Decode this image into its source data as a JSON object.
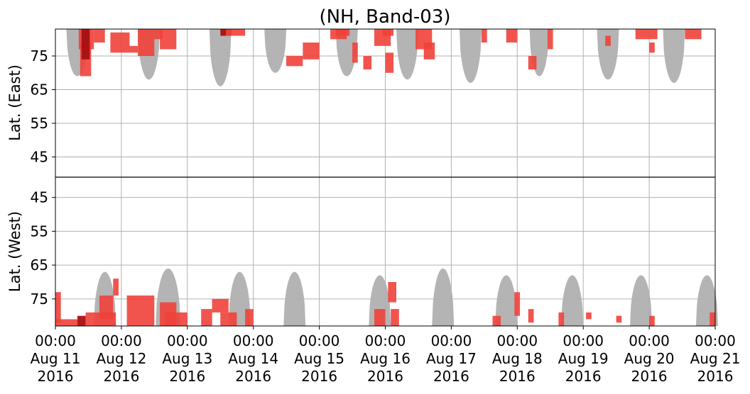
{
  "chart_data": {
    "type": "heatmap",
    "title": "(NH, Band-03)",
    "panels": [
      {
        "name": "East",
        "ylabel": "Lat. (East)",
        "yticks": [
          "45",
          "55",
          "65",
          "75"
        ],
        "ylim": [
          39,
          83
        ]
      },
      {
        "name": "West",
        "ylabel": "Lat. (West)",
        "yticks": [
          "75",
          "65",
          "55",
          "45"
        ],
        "ylim": [
          83,
          39
        ]
      }
    ],
    "x_ticks": [
      {
        "time": "00:00",
        "date": "Aug 11",
        "year": "2016"
      },
      {
        "time": "00:00",
        "date": "Aug 12",
        "year": "2016"
      },
      {
        "time": "00:00",
        "date": "Aug 13",
        "year": "2016"
      },
      {
        "time": "00:00",
        "date": "Aug 14",
        "year": "2016"
      },
      {
        "time": "00:00",
        "date": "Aug 15",
        "year": "2016"
      },
      {
        "time": "00:00",
        "date": "Aug 16",
        "year": "2016"
      },
      {
        "time": "00:00",
        "date": "Aug 17",
        "year": "2016"
      },
      {
        "time": "00:00",
        "date": "Aug 18",
        "year": "2016"
      },
      {
        "time": "00:00",
        "date": "Aug 19",
        "year": "2016"
      },
      {
        "time": "00:00",
        "date": "Aug 20",
        "year": "2016"
      },
      {
        "time": "00:00",
        "date": "Aug 21",
        "year": "2016"
      }
    ],
    "xlim": [
      "2016-08-11 00:00",
      "2016-08-21 00:00"
    ],
    "grid": true,
    "colors": {
      "no_coverage": "#b4b4b4",
      "echo": "#f0413a",
      "echo_strong": "#a80f12",
      "grid": "#b0b0b0"
    },
    "no_coverage_regions": [
      {
        "panel": "East",
        "center": "2016-08-11 08:00",
        "half_width_h": 4.0,
        "lat_edge": 69
      },
      {
        "panel": "East",
        "center": "2016-08-12 10:00",
        "half_width_h": 4.0,
        "lat_edge": 68
      },
      {
        "panel": "East",
        "center": "2016-08-13 12:00",
        "half_width_h": 4.0,
        "lat_edge": 66
      },
      {
        "panel": "East",
        "center": "2016-08-14 08:00",
        "half_width_h": 4.0,
        "lat_edge": 70
      },
      {
        "panel": "East",
        "center": "2016-08-15 10:00",
        "half_width_h": 4.0,
        "lat_edge": 69
      },
      {
        "panel": "East",
        "center": "2016-08-16 08:00",
        "half_width_h": 4.0,
        "lat_edge": 68
      },
      {
        "panel": "East",
        "center": "2016-08-17 07:00",
        "half_width_h": 4.0,
        "lat_edge": 67
      },
      {
        "panel": "East",
        "center": "2016-08-18 08:00",
        "half_width_h": 3.5,
        "lat_edge": 69
      },
      {
        "panel": "East",
        "center": "2016-08-19 09:00",
        "half_width_h": 4.0,
        "lat_edge": 68
      },
      {
        "panel": "East",
        "center": "2016-08-20 09:00",
        "half_width_h": 4.0,
        "lat_edge": 67
      },
      {
        "panel": "West",
        "center": "2016-08-11 18:00",
        "half_width_h": 4.0,
        "lat_edge": 67
      },
      {
        "panel": "West",
        "center": "2016-08-12 17:00",
        "half_width_h": 4.5,
        "lat_edge": 66
      },
      {
        "panel": "West",
        "center": "2016-08-13 19:00",
        "half_width_h": 4.0,
        "lat_edge": 67
      },
      {
        "panel": "West",
        "center": "2016-08-14 15:00",
        "half_width_h": 4.0,
        "lat_edge": 67
      },
      {
        "panel": "West",
        "center": "2016-08-15 22:00",
        "half_width_h": 4.0,
        "lat_edge": 68
      },
      {
        "panel": "West",
        "center": "2016-08-16 21:00",
        "half_width_h": 4.0,
        "lat_edge": 66
      },
      {
        "panel": "West",
        "center": "2016-08-17 20:00",
        "half_width_h": 4.0,
        "lat_edge": 68
      },
      {
        "panel": "West",
        "center": "2016-08-18 20:00",
        "half_width_h": 4.0,
        "lat_edge": 68
      },
      {
        "panel": "West",
        "center": "2016-08-19 21:00",
        "half_width_h": 4.0,
        "lat_edge": 68
      },
      {
        "panel": "West",
        "center": "2016-08-20 21:00",
        "half_width_h": 4.0,
        "lat_edge": 68
      }
    ],
    "echo_patches": [
      {
        "panel": "East",
        "t0": "2016-08-11 08:30",
        "t1": "2016-08-11 14:00",
        "lat0": 77,
        "lat1": 83,
        "strong": false
      },
      {
        "panel": "East",
        "t0": "2016-08-11 09:00",
        "t1": "2016-08-11 13:00",
        "lat0": 69,
        "lat1": 79,
        "strong": false
      },
      {
        "panel": "East",
        "t0": "2016-08-11 09:30",
        "t1": "2016-08-11 12:30",
        "lat0": 74,
        "lat1": 83,
        "strong": true
      },
      {
        "panel": "East",
        "t0": "2016-08-11 14:00",
        "t1": "2016-08-11 18:00",
        "lat0": 79,
        "lat1": 83,
        "strong": false
      },
      {
        "panel": "East",
        "t0": "2016-08-11 20:00",
        "t1": "2016-08-12 03:00",
        "lat0": 76,
        "lat1": 82,
        "strong": false
      },
      {
        "panel": "East",
        "t0": "2016-08-12 03:00",
        "t1": "2016-08-12 06:00",
        "lat0": 76,
        "lat1": 78,
        "strong": false
      },
      {
        "panel": "East",
        "t0": "2016-08-12 06:00",
        "t1": "2016-08-12 12:00",
        "lat0": 75,
        "lat1": 83,
        "strong": false
      },
      {
        "panel": "East",
        "t0": "2016-08-12 12:00",
        "t1": "2016-08-12 15:00",
        "lat0": 80,
        "lat1": 83,
        "strong": false
      },
      {
        "panel": "East",
        "t0": "2016-08-12 14:00",
        "t1": "2016-08-12 20:00",
        "lat0": 77,
        "lat1": 83,
        "strong": false
      },
      {
        "panel": "East",
        "t0": "2016-08-13 12:00",
        "t1": "2016-08-13 16:00",
        "lat0": 81,
        "lat1": 83,
        "strong": true
      },
      {
        "panel": "East",
        "t0": "2016-08-13 14:00",
        "t1": "2016-08-13 21:00",
        "lat0": 81,
        "lat1": 83,
        "strong": false
      },
      {
        "panel": "East",
        "t0": "2016-08-14 12:00",
        "t1": "2016-08-14 18:00",
        "lat0": 72,
        "lat1": 75,
        "strong": false
      },
      {
        "panel": "East",
        "t0": "2016-08-14 18:00",
        "t1": "2016-08-15 00:00",
        "lat0": 74,
        "lat1": 79,
        "strong": false
      },
      {
        "panel": "East",
        "t0": "2016-08-15 04:00",
        "t1": "2016-08-15 10:00",
        "lat0": 80,
        "lat1": 83,
        "strong": false
      },
      {
        "panel": "East",
        "t0": "2016-08-15 06:00",
        "t1": "2016-08-15 11:00",
        "lat0": 81,
        "lat1": 83,
        "strong": false
      },
      {
        "panel": "East",
        "t0": "2016-08-15 12:00",
        "t1": "2016-08-15 14:00",
        "lat0": 73,
        "lat1": 79,
        "strong": false
      },
      {
        "panel": "East",
        "t0": "2016-08-15 16:00",
        "t1": "2016-08-15 19:00",
        "lat0": 71,
        "lat1": 75,
        "strong": false
      },
      {
        "panel": "East",
        "t0": "2016-08-15 20:00",
        "t1": "2016-08-16 02:00",
        "lat0": 78,
        "lat1": 83,
        "strong": false
      },
      {
        "panel": "East",
        "t0": "2016-08-15 23:00",
        "t1": "2016-08-16 03:00",
        "lat0": 81,
        "lat1": 83,
        "strong": false
      },
      {
        "panel": "East",
        "t0": "2016-08-16 00:00",
        "t1": "2016-08-16 03:00",
        "lat0": 70,
        "lat1": 76,
        "strong": false
      },
      {
        "panel": "East",
        "t0": "2016-08-16 11:00",
        "t1": "2016-08-16 17:00",
        "lat0": 77,
        "lat1": 83,
        "strong": false
      },
      {
        "panel": "East",
        "t0": "2016-08-16 14:00",
        "t1": "2016-08-16 18:00",
        "lat0": 74,
        "lat1": 79,
        "strong": false
      },
      {
        "panel": "East",
        "t0": "2016-08-17 11:00",
        "t1": "2016-08-17 13:00",
        "lat0": 79,
        "lat1": 83,
        "strong": false
      },
      {
        "panel": "East",
        "t0": "2016-08-17 20:00",
        "t1": "2016-08-18 00:00",
        "lat0": 79,
        "lat1": 83,
        "strong": false
      },
      {
        "panel": "East",
        "t0": "2016-08-18 04:00",
        "t1": "2016-08-18 07:00",
        "lat0": 71,
        "lat1": 75,
        "strong": false
      },
      {
        "panel": "East",
        "t0": "2016-08-18 11:00",
        "t1": "2016-08-18 13:00",
        "lat0": 77,
        "lat1": 83,
        "strong": false
      },
      {
        "panel": "East",
        "t0": "2016-08-19 08:00",
        "t1": "2016-08-19 10:00",
        "lat0": 78,
        "lat1": 81,
        "strong": false
      },
      {
        "panel": "East",
        "t0": "2016-08-19 19:00",
        "t1": "2016-08-20 03:00",
        "lat0": 80,
        "lat1": 83,
        "strong": false
      },
      {
        "panel": "East",
        "t0": "2016-08-20 00:00",
        "t1": "2016-08-20 02:00",
        "lat0": 76,
        "lat1": 79,
        "strong": false
      },
      {
        "panel": "East",
        "t0": "2016-08-20 13:00",
        "t1": "2016-08-20 19:00",
        "lat0": 80,
        "lat1": 83,
        "strong": false
      },
      {
        "panel": "West",
        "t0": "2016-08-11 00:00",
        "t1": "2016-08-11 02:00",
        "lat0": 73,
        "lat1": 82,
        "strong": false
      },
      {
        "panel": "West",
        "t0": "2016-08-11 00:00",
        "t1": "2016-08-11 08:00",
        "lat0": 81,
        "lat1": 83,
        "strong": false
      },
      {
        "panel": "West",
        "t0": "2016-08-11 08:00",
        "t1": "2016-08-11 11:00",
        "lat0": 80,
        "lat1": 83,
        "strong": true
      },
      {
        "panel": "West",
        "t0": "2016-08-11 11:00",
        "t1": "2016-08-11 22:00",
        "lat0": 79,
        "lat1": 83,
        "strong": false
      },
      {
        "panel": "West",
        "t0": "2016-08-11 16:00",
        "t1": "2016-08-11 21:00",
        "lat0": 74,
        "lat1": 81,
        "strong": false
      },
      {
        "panel": "West",
        "t0": "2016-08-11 21:00",
        "t1": "2016-08-11 23:00",
        "lat0": 69,
        "lat1": 74,
        "strong": false
      },
      {
        "panel": "West",
        "t0": "2016-08-12 02:00",
        "t1": "2016-08-12 12:00",
        "lat0": 74,
        "lat1": 83,
        "strong": false
      },
      {
        "panel": "West",
        "t0": "2016-08-12 14:00",
        "t1": "2016-08-12 20:00",
        "lat0": 76,
        "lat1": 83,
        "strong": false
      },
      {
        "panel": "West",
        "t0": "2016-08-12 16:00",
        "t1": "2016-08-13 00:00",
        "lat0": 79,
        "lat1": 83,
        "strong": false
      },
      {
        "panel": "West",
        "t0": "2016-08-13 05:00",
        "t1": "2016-08-13 09:00",
        "lat0": 78,
        "lat1": 83,
        "strong": false
      },
      {
        "panel": "West",
        "t0": "2016-08-13 09:00",
        "t1": "2016-08-13 15:00",
        "lat0": 75,
        "lat1": 79,
        "strong": false
      },
      {
        "panel": "West",
        "t0": "2016-08-13 12:00",
        "t1": "2016-08-13 18:00",
        "lat0": 79,
        "lat1": 83,
        "strong": false
      },
      {
        "panel": "West",
        "t0": "2016-08-13 21:00",
        "t1": "2016-08-14 00:00",
        "lat0": 78,
        "lat1": 83,
        "strong": false
      },
      {
        "panel": "West",
        "t0": "2016-08-15 20:00",
        "t1": "2016-08-16 00:00",
        "lat0": 78,
        "lat1": 83,
        "strong": false
      },
      {
        "panel": "West",
        "t0": "2016-08-16 01:00",
        "t1": "2016-08-16 04:00",
        "lat0": 70,
        "lat1": 76,
        "strong": false
      },
      {
        "panel": "West",
        "t0": "2016-08-16 02:00",
        "t1": "2016-08-16 05:00",
        "lat0": 78,
        "lat1": 83,
        "strong": false
      },
      {
        "panel": "West",
        "t0": "2016-08-17 15:00",
        "t1": "2016-08-17 18:00",
        "lat0": 80,
        "lat1": 83,
        "strong": false
      },
      {
        "panel": "West",
        "t0": "2016-08-17 23:00",
        "t1": "2016-08-18 01:00",
        "lat0": 73,
        "lat1": 80,
        "strong": false
      },
      {
        "panel": "West",
        "t0": "2016-08-18 04:00",
        "t1": "2016-08-18 06:00",
        "lat0": 78,
        "lat1": 82,
        "strong": false
      },
      {
        "panel": "West",
        "t0": "2016-08-18 15:00",
        "t1": "2016-08-18 17:00",
        "lat0": 79,
        "lat1": 83,
        "strong": false
      },
      {
        "panel": "West",
        "t0": "2016-08-19 01:00",
        "t1": "2016-08-19 03:00",
        "lat0": 79,
        "lat1": 81,
        "strong": false
      },
      {
        "panel": "West",
        "t0": "2016-08-19 12:00",
        "t1": "2016-08-19 14:00",
        "lat0": 80,
        "lat1": 82,
        "strong": false
      },
      {
        "panel": "West",
        "t0": "2016-08-20 00:00",
        "t1": "2016-08-20 02:00",
        "lat0": 80,
        "lat1": 83,
        "strong": false
      },
      {
        "panel": "West",
        "t0": "2016-08-20 22:00",
        "t1": "2016-08-21 00:00",
        "lat0": 79,
        "lat1": 83,
        "strong": false
      }
    ]
  }
}
